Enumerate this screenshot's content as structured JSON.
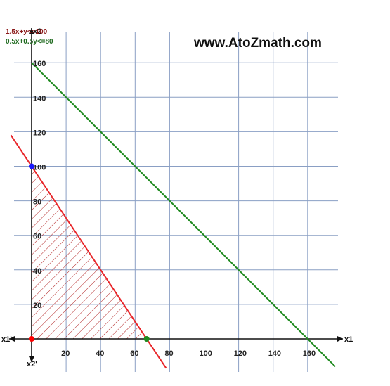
{
  "watermark": "www.AtoZmath.com",
  "chart_data": {
    "type": "line",
    "title": "",
    "xlabel": "x1",
    "ylabel": "x2",
    "x_neg_label": "x1'",
    "y_neg_label": "x2'",
    "xlim": [
      0,
      175
    ],
    "ylim": [
      0,
      175
    ],
    "x_ticks": [
      20,
      40,
      60,
      80,
      100,
      120,
      140,
      160
    ],
    "y_ticks": [
      20,
      40,
      60,
      80,
      100,
      120,
      140,
      160
    ],
    "grid": true,
    "colors": {
      "grid": "#8a9fc4",
      "constraint1": "#e8262a",
      "constraint2": "#1f8a1f",
      "hatch": "#b22222",
      "point_blue": "#1a1aff",
      "point_red": "#ff0000",
      "point_green": "#1f8a1f"
    },
    "series": [
      {
        "name": "1.5x+y<=100",
        "color": "#e8262a",
        "points": [
          [
            -12,
            118
          ],
          [
            78,
            -17
          ]
        ]
      },
      {
        "name": "0.5x+0.5y<=80",
        "color": "#1f8a1f",
        "points": [
          [
            0,
            160
          ],
          [
            176,
            -16
          ]
        ]
      }
    ],
    "feasible_region": [
      [
        0,
        0
      ],
      [
        66.67,
        0
      ],
      [
        0,
        100
      ]
    ],
    "points": [
      {
        "x": 0,
        "y": 100,
        "color": "#1a1aff"
      },
      {
        "x": 0,
        "y": 0,
        "color": "#ff0000"
      },
      {
        "x": 66.67,
        "y": 0,
        "color": "#1f8a1f"
      }
    ]
  }
}
